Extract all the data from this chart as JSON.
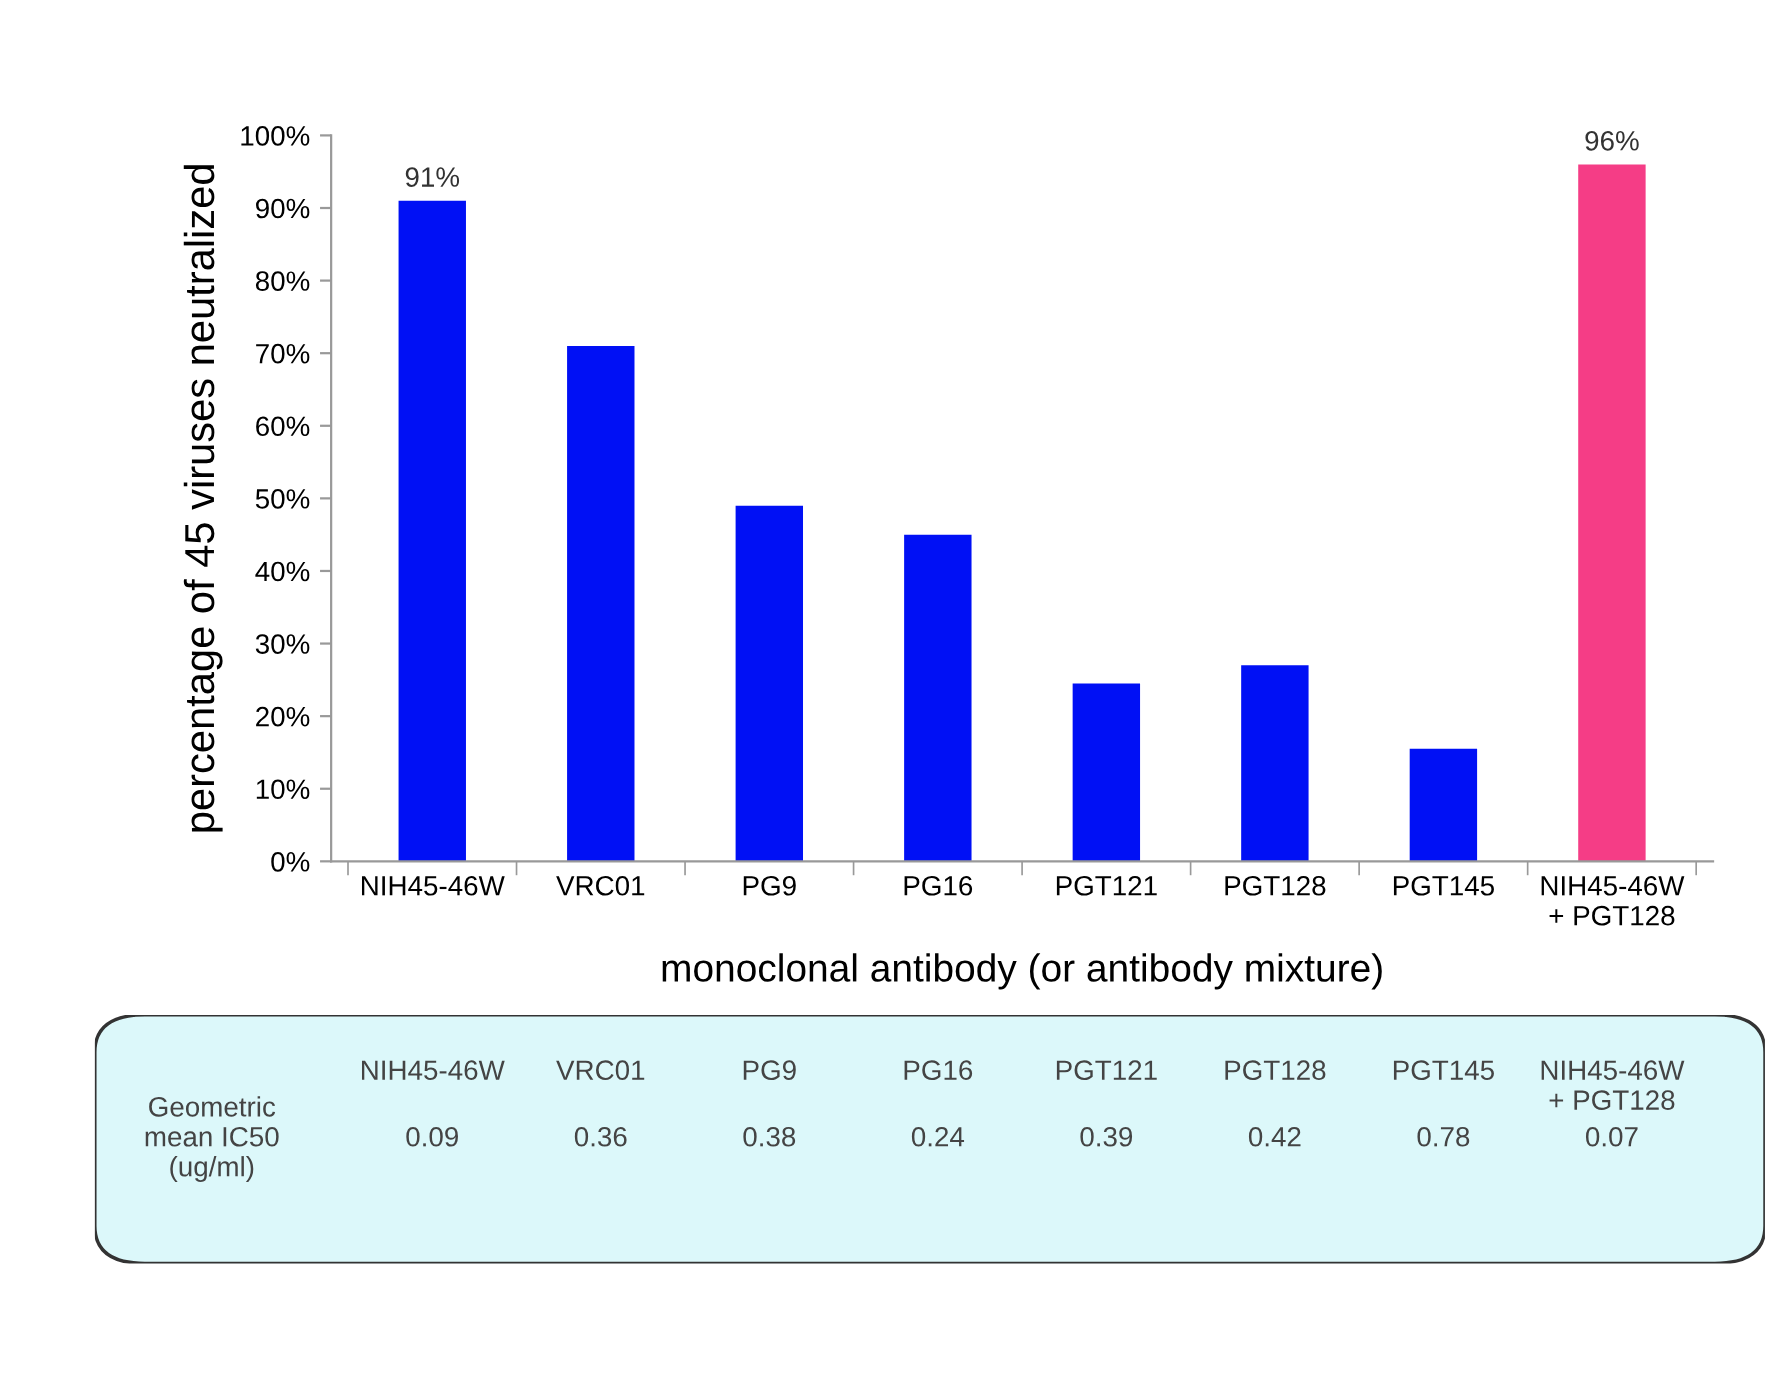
{
  "chart_data": [
    {
      "type": "bar",
      "ylabel": "percentage of 45 viruses neutralized",
      "xlabel": "monoclonal antibody (or antibody mixture)",
      "categories": [
        "NIH45-46W",
        "VRC01",
        "PG9",
        "PG16",
        "PGT121",
        "PGT128",
        "PGT145",
        "NIH45-46W\n+ PGT128"
      ],
      "values": [
        91,
        71,
        49,
        45,
        24.5,
        27,
        15.5,
        96
      ],
      "colors": [
        "#0010f5",
        "#0010f5",
        "#0010f5",
        "#0010f5",
        "#0010f5",
        "#0010f5",
        "#0010f5",
        "#f53d86"
      ],
      "value_labels": [
        "91%",
        null,
        null,
        null,
        null,
        null,
        null,
        "96%"
      ],
      "ylim": [
        0,
        100
      ],
      "yticks": [
        {
          "value": 0,
          "label": "0%"
        },
        {
          "value": 10,
          "label": "10%"
        },
        {
          "value": 20,
          "label": "20%"
        },
        {
          "value": 30,
          "label": "30%"
        },
        {
          "value": 40,
          "label": "40%"
        },
        {
          "value": 50,
          "label": "50%"
        },
        {
          "value": 60,
          "label": "60%"
        },
        {
          "value": 70,
          "label": "70%"
        },
        {
          "value": 80,
          "label": "80%"
        },
        {
          "value": 90,
          "label": "90%"
        },
        {
          "value": 100,
          "label": "100%"
        }
      ],
      "grid": false,
      "legend": false
    },
    {
      "type": "other",
      "ylabel": "Geometric\nmean IC50\n(ug/ml)",
      "categories": [
        "NIH45-46W",
        "VRC01",
        "PG9",
        "PG16",
        "PGT121",
        "PGT128",
        "PGT145",
        "NIH45-46W\n+ PGT128"
      ],
      "values": [
        0.09,
        0.36,
        0.38,
        0.24,
        0.39,
        0.42,
        0.78,
        0.07
      ],
      "data_labels": true
    }
  ]
}
